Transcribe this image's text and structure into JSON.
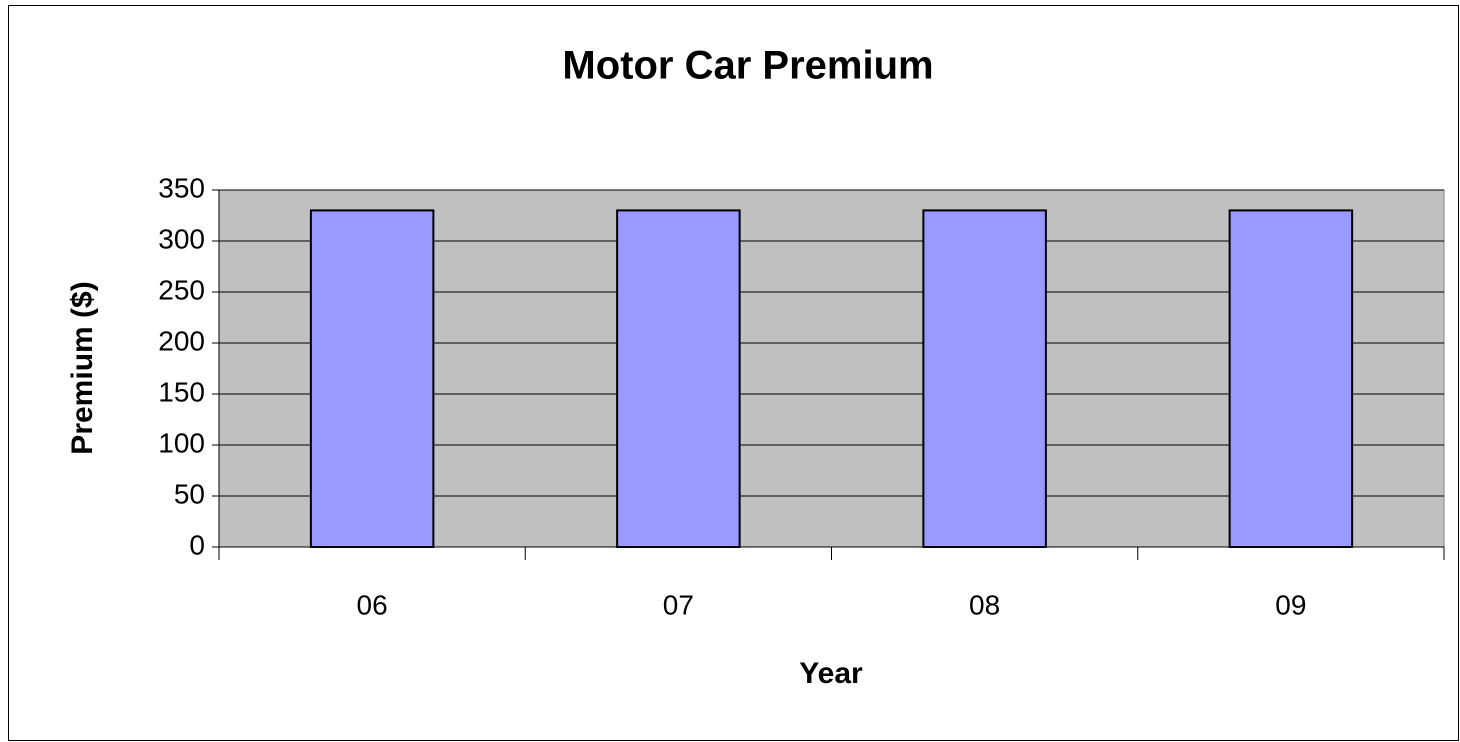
{
  "chart_data": {
    "type": "bar",
    "title": "Motor Car Premium",
    "xlabel": "Year",
    "ylabel": "Premium ($)",
    "categories": [
      "06",
      "07",
      "08",
      "09"
    ],
    "values": [
      330,
      330,
      330,
      330
    ],
    "color": "#9999ff",
    "ylim": [
      0,
      350
    ],
    "yticks": [
      0,
      50,
      100,
      150,
      200,
      250,
      300,
      350
    ],
    "grid": true
  }
}
